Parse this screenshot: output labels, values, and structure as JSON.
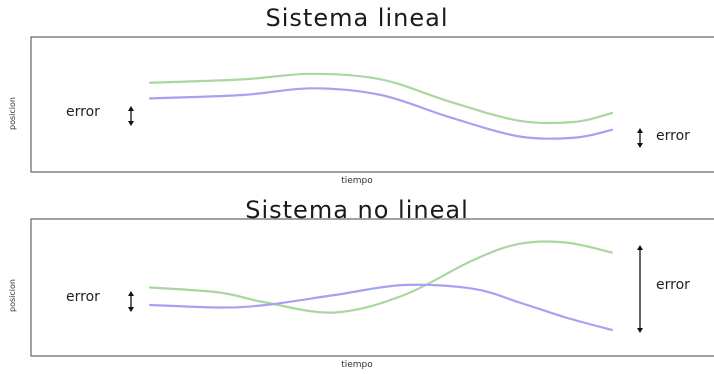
{
  "chart_data": [
    {
      "type": "line",
      "title": "Sistema lineal",
      "xlabel": "tiempo",
      "ylabel": "posicion",
      "grid": false,
      "xlim": [
        0,
        1
      ],
      "ylim": [
        0,
        1
      ],
      "series": [
        {
          "color": "#a8d8a0",
          "x": [
            0,
            0.2,
            0.35,
            0.5,
            0.65,
            0.8,
            0.92,
            1.0
          ],
          "y": [
            0.69,
            0.72,
            0.77,
            0.72,
            0.52,
            0.35,
            0.34,
            0.42
          ]
        },
        {
          "color": "#a8a0f0",
          "x": [
            0,
            0.2,
            0.35,
            0.5,
            0.65,
            0.8,
            0.92,
            1.0
          ],
          "y": [
            0.55,
            0.58,
            0.64,
            0.58,
            0.38,
            0.21,
            0.2,
            0.27
          ]
        }
      ],
      "annotations": [
        {
          "text": "error",
          "side": "left"
        },
        {
          "text": "error",
          "side": "right"
        }
      ]
    },
    {
      "type": "line",
      "title": "Sistema no lineal",
      "xlabel": "tiempo",
      "ylabel": "posicion",
      "grid": false,
      "xlim": [
        0,
        1
      ],
      "ylim": [
        0,
        1
      ],
      "series": [
        {
          "color": "#a8d8a0",
          "x": [
            0,
            0.15,
            0.25,
            0.4,
            0.55,
            0.7,
            0.8,
            0.9,
            1.0
          ],
          "y": [
            0.5,
            0.46,
            0.38,
            0.3,
            0.44,
            0.72,
            0.85,
            0.86,
            0.78
          ]
        },
        {
          "color": "#a8a0f0",
          "x": [
            0,
            0.15,
            0.25,
            0.4,
            0.55,
            0.7,
            0.8,
            0.9,
            1.0
          ],
          "y": [
            0.36,
            0.34,
            0.36,
            0.44,
            0.52,
            0.49,
            0.38,
            0.26,
            0.16
          ]
        }
      ],
      "annotations": [
        {
          "text": "error",
          "side": "left"
        },
        {
          "text": "error",
          "side": "right"
        }
      ]
    }
  ]
}
